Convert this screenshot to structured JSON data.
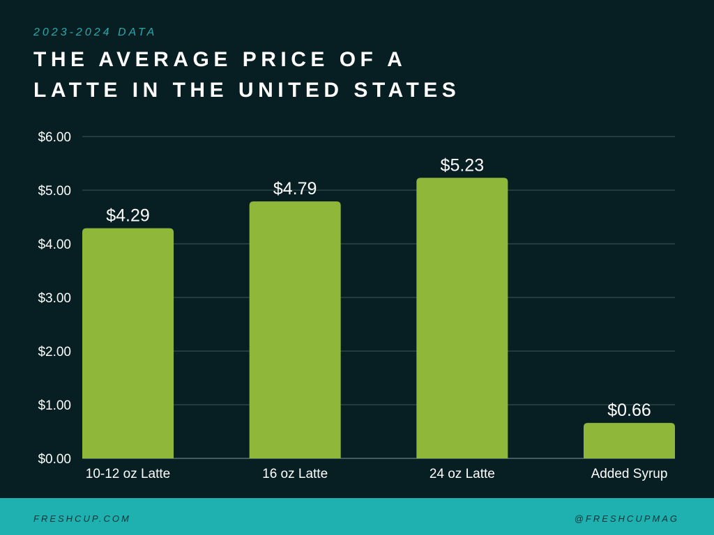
{
  "header": {
    "subtitle": "2023-2024 DATA",
    "title_lines": [
      "THE AVERAGE PRICE OF A",
      "LATTE IN THE UNITED STATES"
    ]
  },
  "chart_data": {
    "type": "bar",
    "title": "THE AVERAGE PRICE OF A LATTE IN THE UNITED STATES",
    "subtitle": "2023-2024 DATA",
    "categories": [
      "10-12 oz Latte",
      "16 oz Latte",
      "24 oz Latte",
      "Added Syrup"
    ],
    "values": [
      4.29,
      4.79,
      5.23,
      0.66
    ],
    "value_labels": [
      "$4.29",
      "$4.79",
      "$5.23",
      "$0.66"
    ],
    "yticks": [
      0,
      1,
      2,
      3,
      4,
      5,
      6
    ],
    "ytick_labels": [
      "$0.00",
      "$1.00",
      "$2.00",
      "$3.00",
      "$4.00",
      "$5.00",
      "$6.00"
    ],
    "ylim": [
      0,
      6
    ],
    "xlabel": "",
    "ylabel": "",
    "grid": true,
    "colors": {
      "bar": "#8fb83b",
      "grid": "#3d5a5a",
      "text": "#ffffff"
    }
  },
  "footer": {
    "left": "FRESHCUP.COM",
    "right": "@FRESHCUPMAG",
    "background": "#1fb0b0"
  }
}
